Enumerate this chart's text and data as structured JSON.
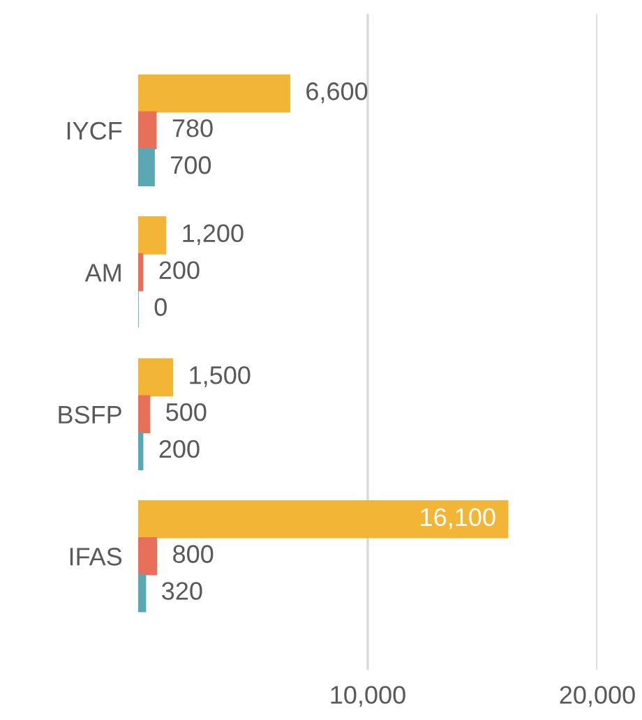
{
  "chart_data": {
    "type": "bar",
    "orientation": "horizontal",
    "categories": [
      "IYCF",
      "AM",
      "BSFP",
      "IFAS"
    ],
    "series": [
      {
        "color": "#f2b535",
        "values": [
          6600,
          1200,
          1500,
          16100
        ],
        "value_labels": [
          "6,600",
          "1,200",
          "1,500",
          "16,100"
        ]
      },
      {
        "color": "#e8705a",
        "values": [
          780,
          200,
          500,
          800
        ],
        "value_labels": [
          "780",
          "200",
          "500",
          "800"
        ]
      },
      {
        "color": "#5ba8b5",
        "values": [
          700,
          0,
          200,
          320
        ],
        "value_labels": [
          "700",
          "0",
          "200",
          "320"
        ]
      }
    ],
    "xlim": [
      0,
      20000
    ],
    "xticks": [
      {
        "value": 10000,
        "label": "10,000"
      },
      {
        "value": 20000,
        "label": "20,000"
      }
    ],
    "grid": "x",
    "legend": false
  }
}
